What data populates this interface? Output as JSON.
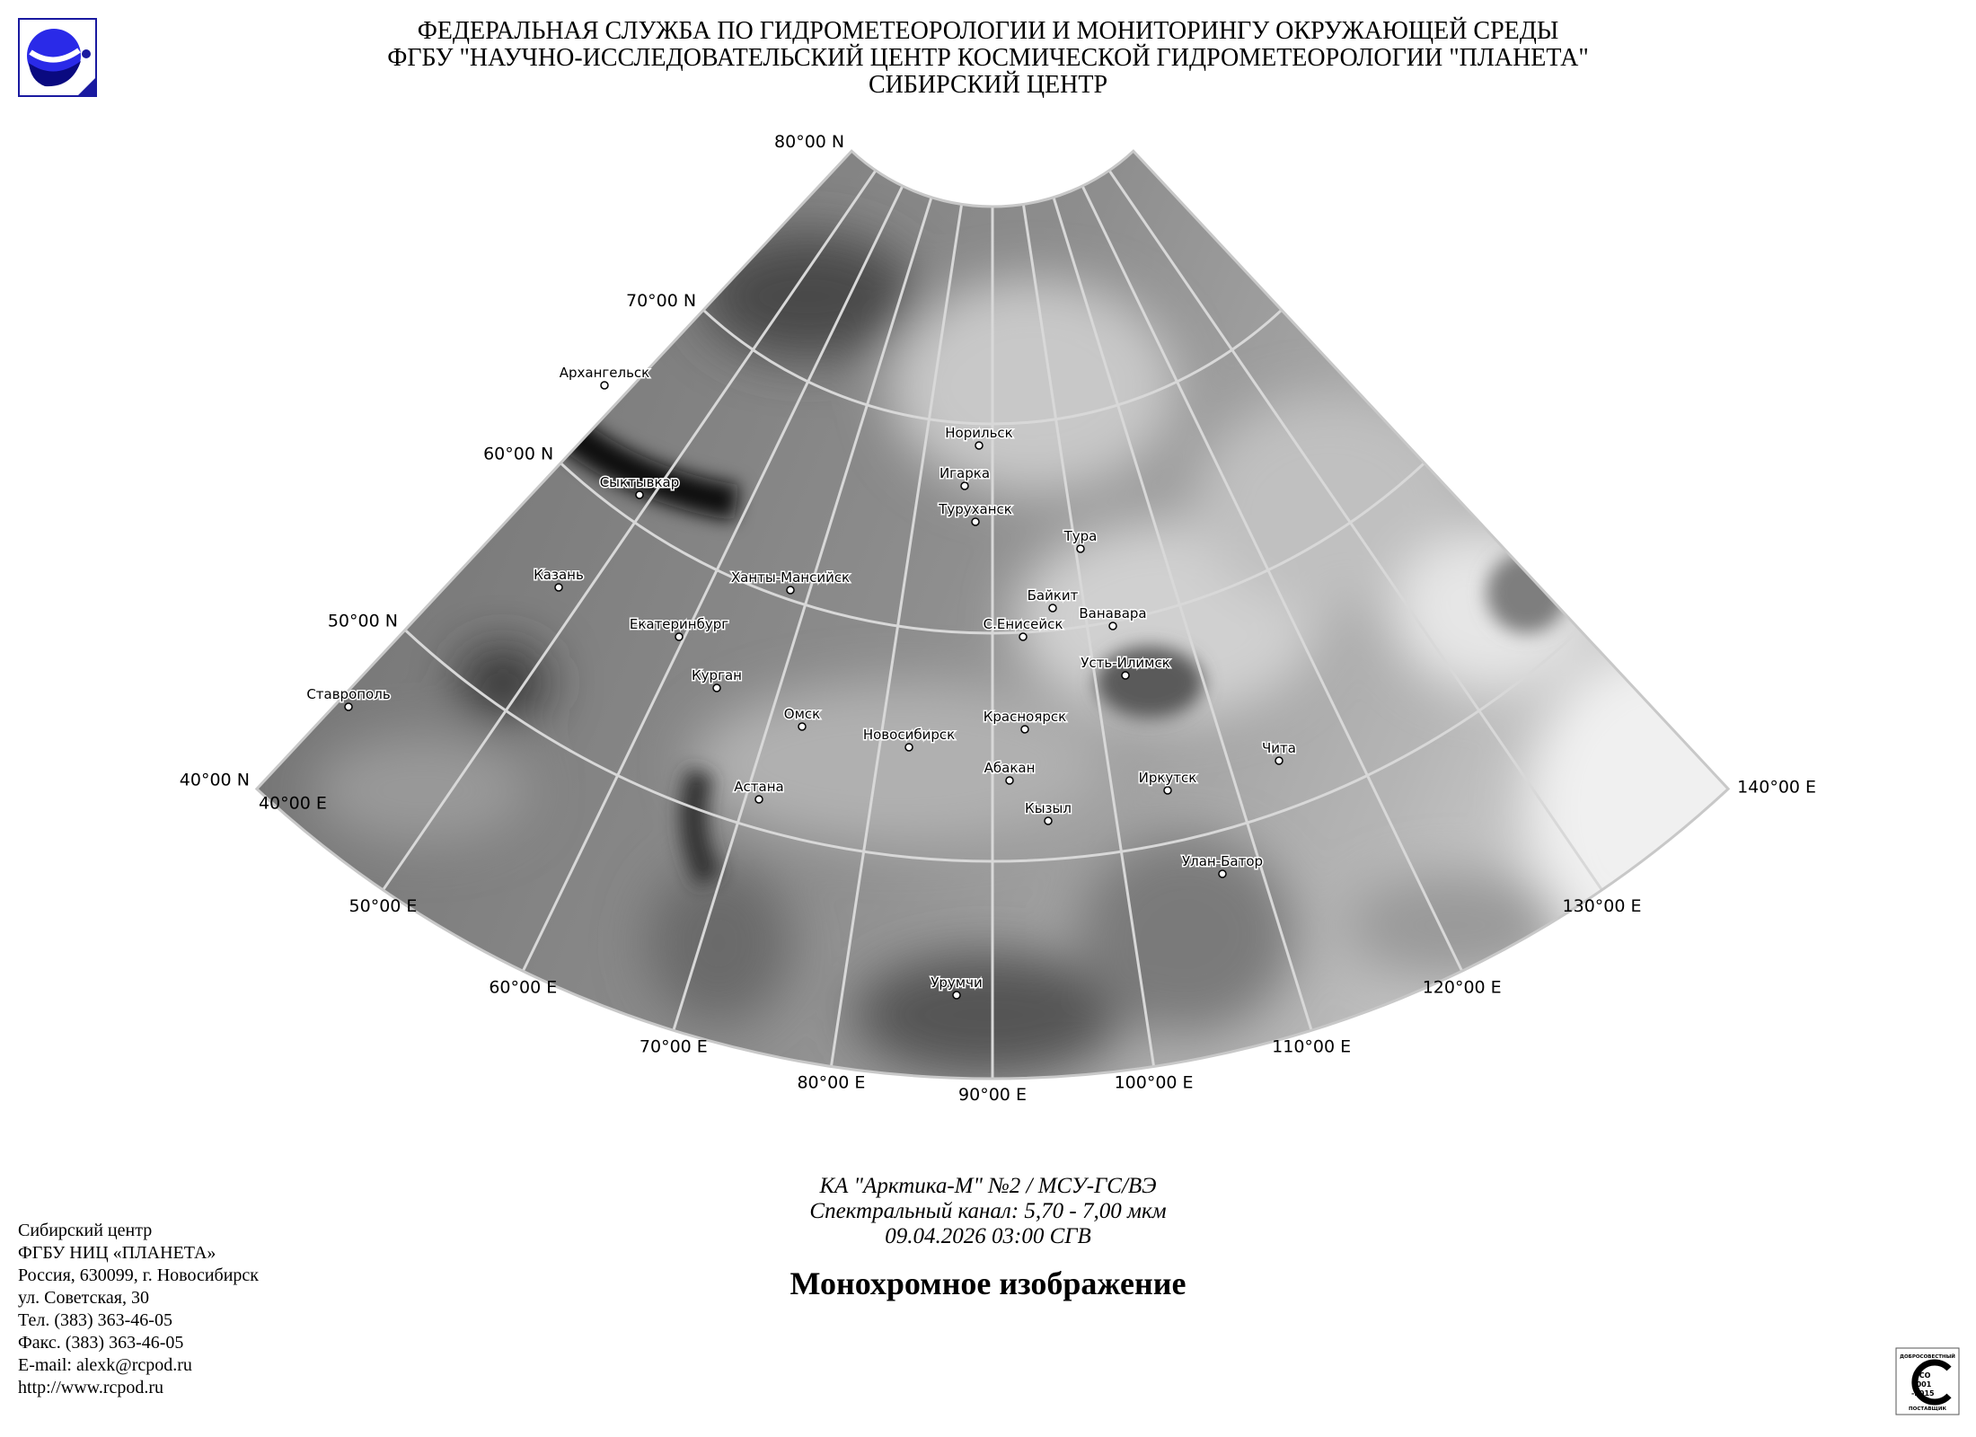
{
  "header": {
    "line1": "ФЕДЕРАЛЬНАЯ СЛУЖБА ПО ГИДРОМЕТЕОРОЛОГИИ И МОНИТОРИНГУ ОКРУЖАЮЩЕЙ СРЕДЫ",
    "line2": "ФГБУ \"НАУЧНО-ИССЛЕДОВАТЕЛЬСКИЙ ЦЕНТР КОСМИЧЕСКОЙ ГИДРОМЕТЕОРОЛОГИИ \"ПЛАНЕТА\"",
    "line3": "СИБИРСКИЙ ЦЕНТР",
    "logo_icon": "planeta-logo",
    "logo_color": "#1a1aa0"
  },
  "map": {
    "projection": "conic",
    "lat_labels": [
      "80°00 N",
      "70°00 N",
      "60°00 N",
      "50°00 N",
      "40°00 N"
    ],
    "lon_labels": [
      "40°00 E",
      "50°00 E",
      "60°00 E",
      "70°00 E",
      "80°00 E",
      "90°00 E",
      "100°00 E",
      "110°00 E",
      "120°00 E",
      "130°00 E",
      "140°00 E"
    ],
    "cities": [
      "Архангельск",
      "Сыктывкар",
      "Казань",
      "Ставрополь",
      "Екатеринбург",
      "Курган",
      "Ханты-Мансийск",
      "Омск",
      "Астана",
      "Новосибирск",
      "Норильск",
      "Игарка",
      "Туруханск",
      "Тура",
      "Байкит",
      "С.Енисейск",
      "Ванавара",
      "Усть-Илимск",
      "Красноярск",
      "Абакан",
      "Кызыл",
      "Иркутск",
      "Чита",
      "Улан-Батор",
      "Урумчи"
    ]
  },
  "caption": {
    "satellite": "КА \"Арктика-М\" №2 / МСУ-ГС/ВЭ",
    "channel": "Спектральный канал: 5,70 - 7,00 мкм",
    "datetime": "09.04.2026  03:00 СГВ",
    "title": "Монохромное изображение"
  },
  "contacts": [
    "Сибирский центр",
    "ФГБУ НИЦ «ПЛАНЕТА»",
    "Россия, 630099, г. Новосибирск",
    "ул. Советская, 30",
    "Тел. (383) 363-46-05",
    "Факс. (383) 363-46-05",
    "E-mail: alexk@rcpod.ru",
    "http://www.rcpod.ru"
  ],
  "iso_badge": {
    "top": "ДОБРОСОВЕСТНЫЙ",
    "center": "ИСО 9001 -2015",
    "bottom": "ПОСТАВЩИК"
  }
}
